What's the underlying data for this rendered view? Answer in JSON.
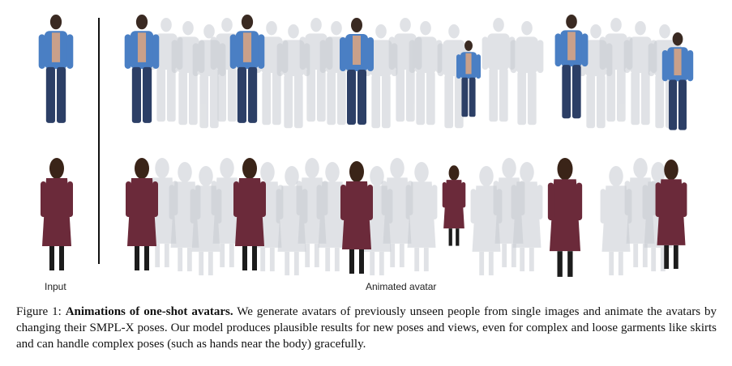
{
  "figure": {
    "input_label": "Input",
    "animated_label": "Animated avatar"
  },
  "caption": {
    "prefix": "Figure 1:",
    "title": "Animations of one-shot avatars.",
    "body": "We generate avatars of previously unseen people from single images and animate the avatars by changing their SMPL-X poses. Our model produces plausible results for new poses and views, even for complex and loose garments like skirts and can handle complex poses (such as hands near the body) gracefully."
  },
  "colors": {
    "man_shirt": "#4a7fc4",
    "man_jeans": "#2c3f66",
    "man_skin": "#c9a08a",
    "woman_dress": "#6b2a3a",
    "woman_hair": "#3a2418",
    "ghost": "#c8ccd2",
    "divider": "#111111"
  }
}
